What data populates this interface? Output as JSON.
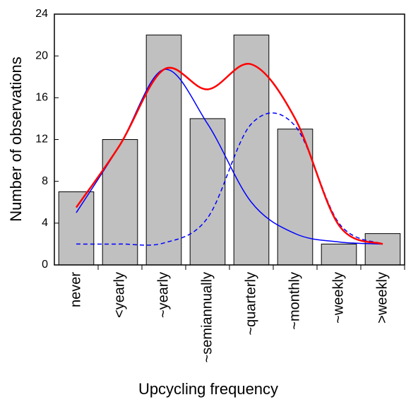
{
  "chart_data": {
    "type": "bar",
    "x_label": "Upcycling frequency",
    "y_label": "Number of observations",
    "categories": [
      "never",
      "<yearly",
      "~yearly",
      "~semiannually",
      "~quarterly",
      "~monthly",
      "~weekly",
      ">weekly"
    ],
    "values": [
      7,
      12,
      22,
      14,
      22,
      13,
      2,
      3
    ],
    "color": "#c0c0c0",
    "lines": [
      {
        "color": "#0000ff",
        "style": "solid",
        "values": [
          5,
          11.5,
          18.7,
          13.5,
          6,
          3,
          2.2,
          2
        ]
      },
      {
        "color": "#0000ff",
        "style": "dashed",
        "values": [
          2,
          2,
          2.1,
          4.5,
          13.5,
          13.3,
          4,
          2
        ]
      },
      {
        "color": "#ff0000",
        "style": "solid",
        "values": [
          5.5,
          11.5,
          18.7,
          16.8,
          19.2,
          14,
          3.8,
          2
        ]
      }
    ],
    "ylim": [
      0,
      24
    ],
    "yticks": [
      0,
      4,
      8,
      12,
      16,
      20,
      24
    ]
  }
}
